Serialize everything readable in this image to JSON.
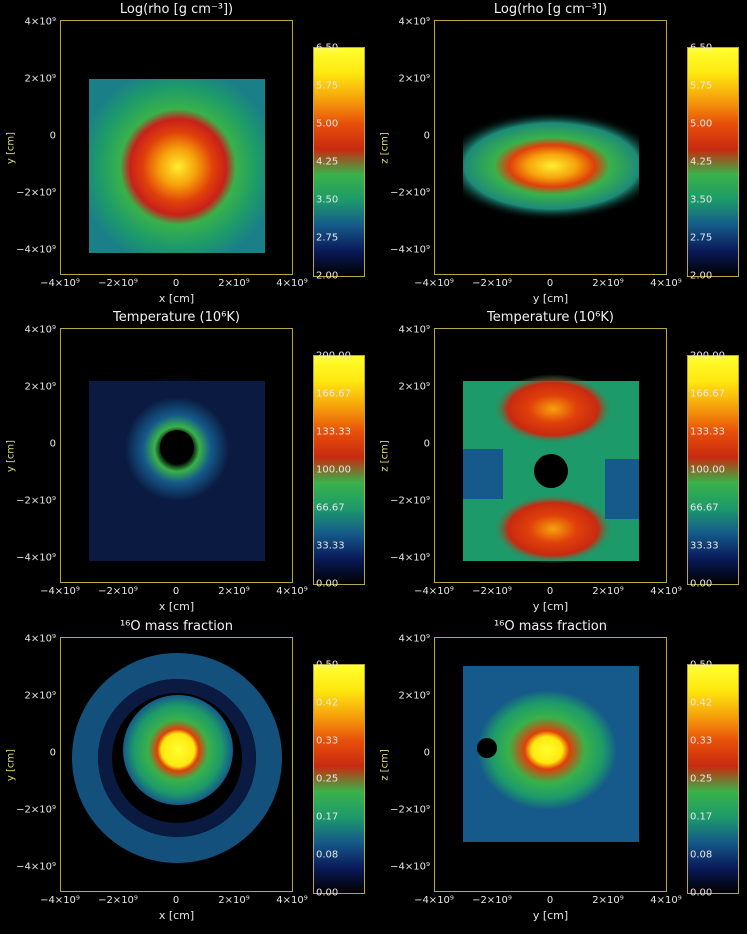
{
  "colorscale": [
    "#000000",
    "#0a1a5a",
    "#155a8a",
    "#1d9a6a",
    "#39b24a",
    "#c82a10",
    "#e84f0a",
    "#f6a20b",
    "#ffe80f",
    "#ffff30"
  ],
  "panels": [
    {
      "title": "Log(rho [g cm⁻³])",
      "ylabel": "y [cm]",
      "xlabel": "x [cm]",
      "yticks": [
        "4×10⁹",
        "2×10⁹",
        "0",
        "−2×10⁹",
        "−4×10⁹"
      ],
      "xticks": [
        "−4×10⁹",
        "−2×10⁹",
        "0",
        "2×10⁹",
        "4×10⁹"
      ],
      "cbar_ticks": [
        "6.50",
        "5.75",
        "5.00",
        "4.25",
        "3.50",
        "2.75",
        "2.00"
      ],
      "field": "density_xy"
    },
    {
      "title": "Log(rho [g cm⁻³])",
      "ylabel": "z [cm]",
      "xlabel": "y [cm]",
      "yticks": [
        "4×10⁹",
        "2×10⁹",
        "0",
        "−2×10⁹",
        "−4×10⁹"
      ],
      "xticks": [
        "−4×10⁹",
        "−2×10⁹",
        "0",
        "2×10⁹",
        "4×10⁹"
      ],
      "cbar_ticks": [
        "6.50",
        "5.75",
        "5.00",
        "4.25",
        "3.50",
        "2.75",
        "2.00"
      ],
      "field": "density_yz"
    },
    {
      "title": "Temperature (10⁶K)",
      "ylabel": "y [cm]",
      "xlabel": "x [cm]",
      "yticks": [
        "4×10⁹",
        "2×10⁹",
        "0",
        "−2×10⁹",
        "−4×10⁹"
      ],
      "xticks": [
        "−4×10⁹",
        "−2×10⁹",
        "0",
        "2×10⁹",
        "4×10⁹"
      ],
      "cbar_ticks": [
        "200.00",
        "166.67",
        "133.33",
        "100.00",
        "66.67",
        "33.33",
        "0.00"
      ],
      "field": "temp_xy"
    },
    {
      "title": "Temperature (10⁶K)",
      "ylabel": "z [cm]",
      "xlabel": "y [cm]",
      "yticks": [
        "4×10⁹",
        "2×10⁹",
        "0",
        "−2×10⁹",
        "−4×10⁹"
      ],
      "xticks": [
        "−4×10⁹",
        "−2×10⁹",
        "0",
        "2×10⁹",
        "4×10⁹"
      ],
      "cbar_ticks": [
        "200.00",
        "166.67",
        "133.33",
        "100.00",
        "66.67",
        "33.33",
        "0.00"
      ],
      "field": "temp_yz"
    },
    {
      "title": "¹⁶O mass fraction",
      "ylabel": "y [cm]",
      "xlabel": "x [cm]",
      "yticks": [
        "4×10⁹",
        "2×10⁹",
        "0",
        "−2×10⁹",
        "−4×10⁹"
      ],
      "xticks": [
        "−4×10⁹",
        "−2×10⁹",
        "0",
        "2×10⁹",
        "4×10⁹"
      ],
      "cbar_ticks": [
        "0.50",
        "0.42",
        "0.33",
        "0.25",
        "0.17",
        "0.08",
        "0.00"
      ],
      "field": "oxygen_xy"
    },
    {
      "title": "¹⁶O mass fraction",
      "ylabel": "z [cm]",
      "xlabel": "y [cm]",
      "yticks": [
        "4×10⁹",
        "2×10⁹",
        "0",
        "−2×10⁹",
        "−4×10⁹"
      ],
      "xticks": [
        "−4×10⁹",
        "−2×10⁹",
        "0",
        "2×10⁹",
        "4×10⁹"
      ],
      "cbar_ticks": [
        "0.50",
        "0.42",
        "0.33",
        "0.25",
        "0.17",
        "0.08",
        "0.00"
      ],
      "field": "oxygen_yz"
    }
  ]
}
